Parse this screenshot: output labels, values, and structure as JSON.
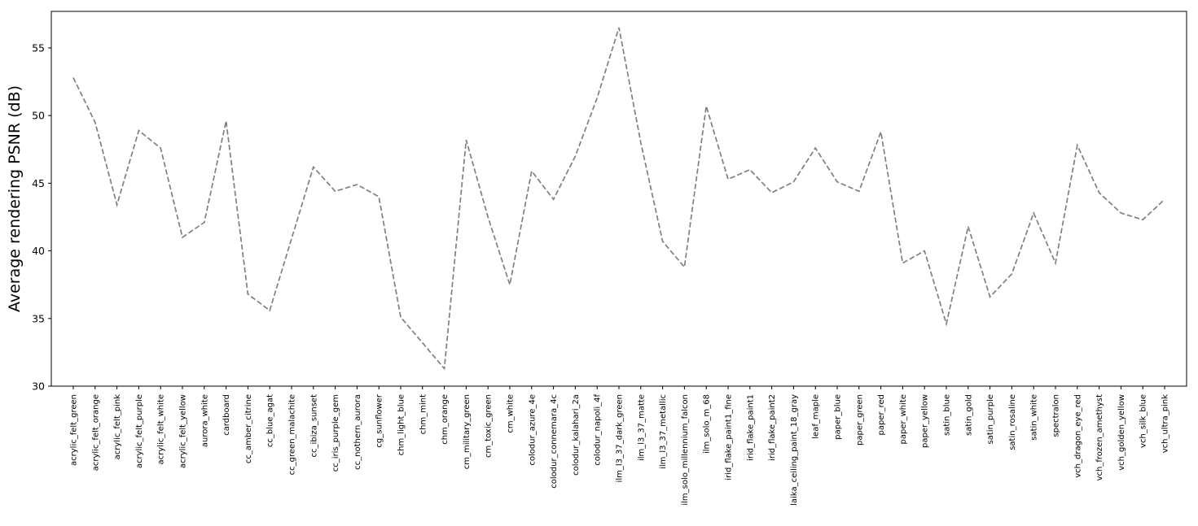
{
  "chart_data": {
    "type": "line",
    "title": "",
    "xlabel": "",
    "ylabel": "Average rendering PSNR (dB)",
    "ylim": [
      30,
      57.7
    ],
    "yticks": [
      30,
      35,
      40,
      45,
      50,
      55
    ],
    "grid": false,
    "legend": "none",
    "line_color": "#808080",
    "line_style": "dashed",
    "categories": [
      "acrylic_felt_green",
      "acrylic_felt_orange",
      "acrylic_felt_pink",
      "acrylic_felt_purple",
      "acrylic_felt_white",
      "acrylic_felt_yellow",
      "aurora_white",
      "cardboard",
      "cc_amber_citrine",
      "cc_blue_agat",
      "cc_green_malachite",
      "cc_ibiza_sunset",
      "cc_iris_purple_gem",
      "cc_nothern_aurora",
      "cg_sunflower",
      "chm_light_blue",
      "chm_mint",
      "chm_orange",
      "cm_military_green",
      "cm_toxic_green",
      "cm_white",
      "colodur_azure_4e",
      "colodur_connemara_4c",
      "colodur_kalahari_2a",
      "colodur_napoli_4f",
      "ilm_l3_37_dark_green",
      "ilm_l3_37_matte",
      "ilm_l3_37_metallic",
      "ilm_solo_millennium_falcon",
      "ilm_solo_m_68",
      "irid_flake_paint1_fine",
      "irid_flake_paint1",
      "irid_flake_paint2",
      "laika_ceiling_paint_18_gray",
      "leaf_maple",
      "paper_blue",
      "paper_green",
      "paper_red",
      "paper_white",
      "paper_yellow",
      "satin_blue",
      "satin_gold",
      "satin_purple",
      "satin_rosaline",
      "satin_white",
      "spectralon",
      "vch_dragon_eye_red",
      "vch_frozen_amethyst",
      "vch_golden_yellow",
      "vch_silk_blue",
      "vch_ultra_pink"
    ],
    "values": [
      52.8,
      49.5,
      43.4,
      48.9,
      47.6,
      41.0,
      42.1,
      49.6,
      36.8,
      35.6,
      40.9,
      46.2,
      44.4,
      44.9,
      44.0,
      35.1,
      33.2,
      31.3,
      48.2,
      42.5,
      37.5,
      45.9,
      43.8,
      47.0,
      51.3,
      56.5,
      48.0,
      40.7,
      38.8,
      50.7,
      45.3,
      46.0,
      44.3,
      45.1,
      47.6,
      45.1,
      44.4,
      48.8,
      39.1,
      40.0,
      34.6,
      41.8,
      36.6,
      38.3,
      42.8,
      39.1,
      47.8,
      44.3,
      42.8,
      42.3,
      43.8
    ]
  }
}
